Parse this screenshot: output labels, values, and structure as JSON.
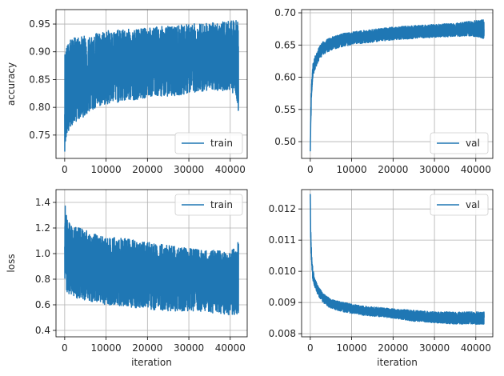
{
  "chart_data": [
    {
      "type": "line",
      "xlabel": "",
      "ylabel": "accuracy",
      "xlim": [
        -2100,
        44100
      ],
      "ylim": [
        0.708,
        0.976
      ],
      "xticks": [
        0,
        10000,
        20000,
        30000,
        40000
      ],
      "yticks": [
        0.75,
        0.8,
        0.85,
        0.9,
        0.95
      ],
      "ytick_labels": [
        "0.75",
        "0.80",
        "0.85",
        "0.90",
        "0.95"
      ],
      "grid": true,
      "legend_position": "lower right",
      "color": "#1f77b4",
      "series": [
        {
          "name": "train",
          "x": [
            0,
            500,
            1000,
            2000,
            4000,
            6000,
            8000,
            10000,
            14000,
            18000,
            22000,
            26000,
            30000,
            34000,
            38000,
            40000,
            41500,
            42000
          ],
          "center": [
            0.83,
            0.84,
            0.845,
            0.85,
            0.857,
            0.862,
            0.866,
            0.869,
            0.873,
            0.876,
            0.878,
            0.88,
            0.882,
            0.884,
            0.886,
            0.887,
            0.887,
            0.887
          ],
          "upper": [
            0.9,
            0.91,
            0.92,
            0.925,
            0.928,
            0.93,
            0.935,
            0.938,
            0.94,
            0.942,
            0.945,
            0.947,
            0.95,
            0.952,
            0.954,
            0.955,
            0.958,
            0.955
          ],
          "lower": [
            0.72,
            0.74,
            0.76,
            0.77,
            0.78,
            0.79,
            0.8,
            0.805,
            0.81,
            0.815,
            0.82,
            0.82,
            0.825,
            0.83,
            0.83,
            0.83,
            0.82,
            0.785
          ]
        }
      ]
    },
    {
      "type": "line",
      "xlabel": "",
      "ylabel": "",
      "xlim": [
        -2100,
        44100
      ],
      "ylim": [
        0.474,
        0.705
      ],
      "xticks": [
        0,
        10000,
        20000,
        30000,
        40000
      ],
      "yticks": [
        0.5,
        0.55,
        0.6,
        0.65,
        0.7
      ],
      "ytick_labels": [
        "0.50",
        "0.55",
        "0.60",
        "0.65",
        "0.70"
      ],
      "grid": true,
      "legend_position": "lower right",
      "color": "#1f77b4",
      "series": [
        {
          "name": "val",
          "x": [
            0,
            100,
            300,
            600,
            1000,
            2000,
            3000,
            5000,
            8000,
            12000,
            16000,
            20000,
            25000,
            30000,
            35000,
            40000,
            42000
          ],
          "center": [
            0.485,
            0.53,
            0.58,
            0.61,
            0.62,
            0.635,
            0.645,
            0.652,
            0.658,
            0.663,
            0.666,
            0.668,
            0.67,
            0.672,
            0.673,
            0.674,
            0.672
          ],
          "upper": [
            0.49,
            0.54,
            0.59,
            0.62,
            0.63,
            0.645,
            0.655,
            0.662,
            0.668,
            0.672,
            0.675,
            0.678,
            0.68,
            0.682,
            0.684,
            0.688,
            0.69
          ],
          "lower": [
            0.485,
            0.52,
            0.57,
            0.6,
            0.61,
            0.625,
            0.635,
            0.642,
            0.648,
            0.652,
            0.655,
            0.658,
            0.66,
            0.662,
            0.663,
            0.663,
            0.66
          ]
        }
      ]
    },
    {
      "type": "line",
      "xlabel": "iteration",
      "ylabel": "loss",
      "xlim": [
        -2100,
        44100
      ],
      "ylim": [
        0.35,
        1.5
      ],
      "xticks": [
        0,
        10000,
        20000,
        30000,
        40000
      ],
      "yticks": [
        0.4,
        0.6,
        0.8,
        1.0,
        1.2,
        1.4
      ],
      "ytick_labels": [
        "0.4",
        "0.6",
        "0.8",
        "1.0",
        "1.2",
        "1.4"
      ],
      "grid": true,
      "legend_position": "upper right",
      "color": "#1f77b4",
      "series": [
        {
          "name": "train",
          "x": [
            0,
            500,
            1000,
            2000,
            4000,
            6000,
            8000,
            10000,
            14000,
            18000,
            22000,
            26000,
            30000,
            34000,
            38000,
            40000,
            42000
          ],
          "center": [
            1.05,
            1.0,
            0.97,
            0.95,
            0.92,
            0.9,
            0.88,
            0.87,
            0.85,
            0.83,
            0.82,
            0.81,
            0.8,
            0.79,
            0.78,
            0.78,
            0.78
          ],
          "upper": [
            1.42,
            1.3,
            1.25,
            1.22,
            1.2,
            1.17,
            1.15,
            1.13,
            1.12,
            1.1,
            1.08,
            1.06,
            1.04,
            1.03,
            1.02,
            1.01,
            1.1
          ],
          "lower": [
            0.75,
            0.7,
            0.68,
            0.66,
            0.64,
            0.62,
            0.61,
            0.6,
            0.59,
            0.57,
            0.56,
            0.55,
            0.55,
            0.54,
            0.53,
            0.52,
            0.52
          ]
        }
      ]
    },
    {
      "type": "line",
      "xlabel": "iteration",
      "ylabel": "",
      "xlim": [
        -2100,
        44100
      ],
      "ylim": [
        0.0079,
        0.01262
      ],
      "xticks": [
        0,
        10000,
        20000,
        30000,
        40000
      ],
      "yticks": [
        0.008,
        0.009,
        0.01,
        0.011,
        0.012
      ],
      "ytick_labels": [
        "0.008",
        "0.009",
        "0.010",
        "0.011",
        "0.012"
      ],
      "grid": true,
      "legend_position": "upper right",
      "color": "#1f77b4",
      "series": [
        {
          "name": "val",
          "x": [
            0,
            100,
            300,
            600,
            1000,
            2000,
            3000,
            5000,
            8000,
            12000,
            16000,
            20000,
            25000,
            30000,
            35000,
            40000,
            42000
          ],
          "center": [
            0.0125,
            0.0112,
            0.0104,
            0.0099,
            0.0097,
            0.0094,
            0.0092,
            0.009,
            0.00885,
            0.00875,
            0.0087,
            0.00862,
            0.00855,
            0.0085,
            0.00847,
            0.00845,
            0.00845
          ],
          "upper": [
            0.0125,
            0.0114,
            0.0106,
            0.0101,
            0.0098,
            0.0095,
            0.0093,
            0.0091,
            0.009,
            0.0089,
            0.00885,
            0.0088,
            0.00875,
            0.0087,
            0.0087,
            0.0087,
            0.0087
          ],
          "lower": [
            0.0124,
            0.011,
            0.0102,
            0.0097,
            0.0095,
            0.0092,
            0.009,
            0.0088,
            0.0087,
            0.0086,
            0.00855,
            0.0085,
            0.0084,
            0.00835,
            0.0083,
            0.0083,
            0.0083
          ]
        }
      ]
    }
  ]
}
